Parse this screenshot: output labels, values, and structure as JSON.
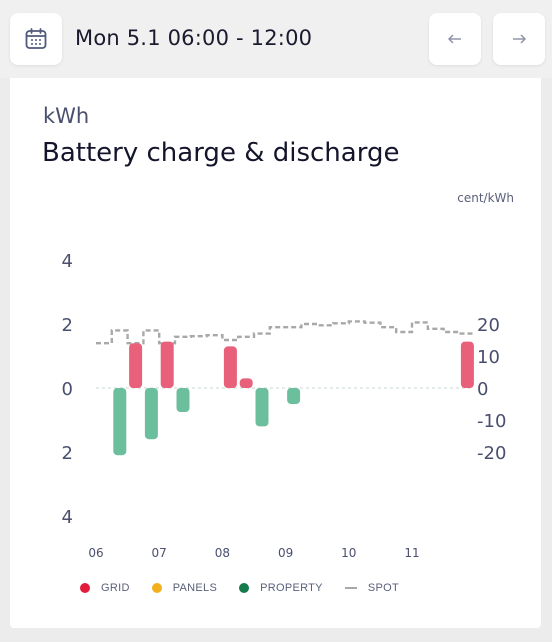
{
  "header": {
    "date_range": "Mon 5.1 06:00 - 12:00",
    "calendar_icon": "calendar-icon",
    "prev_icon": "arrow-left-icon",
    "next_icon": "arrow-right-icon"
  },
  "card": {
    "unit": "kWh",
    "title": "Battery charge & discharge"
  },
  "chart_data": {
    "type": "bar",
    "title": "Battery charge & discharge",
    "ylabel": "kWh",
    "ylabel_right": "cent/kWh",
    "ylim": [
      -4,
      4
    ],
    "ylim_right": [
      -20,
      20
    ],
    "y_ticks_left": [
      "4",
      "2",
      "0",
      "2",
      "4"
    ],
    "y_ticks_right": [
      "20",
      "10",
      "0",
      "-10",
      "-20"
    ],
    "x_ticks": [
      "06",
      "07",
      "08",
      "09",
      "10",
      "11"
    ],
    "grid": false,
    "legend_position": "bottom",
    "series": [
      {
        "name": "GRID",
        "color": "#e8607a",
        "bars": [
          {
            "x": 6.5,
            "value": 1.4
          },
          {
            "x": 7.0,
            "value": 1.45
          },
          {
            "x": 8.0,
            "value": 1.3
          },
          {
            "x": 8.25,
            "value": 0.3
          },
          {
            "x": 11.75,
            "value": 1.45
          }
        ]
      },
      {
        "name": "PANELS",
        "color": "#f2b01e",
        "bars": []
      },
      {
        "name": "PROPERTY",
        "color": "#6cbf9c",
        "bars": [
          {
            "x": 6.25,
            "value": -2.1
          },
          {
            "x": 6.75,
            "value": -1.6
          },
          {
            "x": 7.25,
            "value": -0.75
          },
          {
            "x": 8.5,
            "value": -1.2
          },
          {
            "x": 9.0,
            "value": -0.5
          }
        ]
      },
      {
        "name": "SPOT",
        "color": "#a8a8a8",
        "style": "dashed-step",
        "x": [
          6.0,
          6.25,
          6.5,
          6.75,
          7.0,
          7.25,
          7.5,
          7.75,
          8.0,
          8.25,
          8.5,
          8.75,
          9.0,
          9.25,
          9.5,
          9.75,
          10.0,
          10.25,
          10.5,
          10.75,
          11.0,
          11.25,
          11.5,
          11.75
        ],
        "values": [
          14.0,
          18.0,
          14.0,
          18.0,
          14.0,
          16.0,
          16.2,
          16.5,
          15.0,
          16.0,
          17.0,
          19.0,
          19.0,
          20.0,
          19.6,
          20.2,
          20.8,
          20.4,
          19.0,
          17.5,
          20.5,
          18.5,
          17.5,
          17.0
        ]
      }
    ]
  },
  "legend": [
    {
      "label": "GRID",
      "color": "#e41b3b",
      "kind": "dot"
    },
    {
      "label": "PANELS",
      "color": "#f2b01e",
      "kind": "dot"
    },
    {
      "label": "PROPERTY",
      "color": "#157a4c",
      "kind": "dot"
    },
    {
      "label": "SPOT",
      "color": "#a8a8a8",
      "kind": "dash"
    }
  ]
}
